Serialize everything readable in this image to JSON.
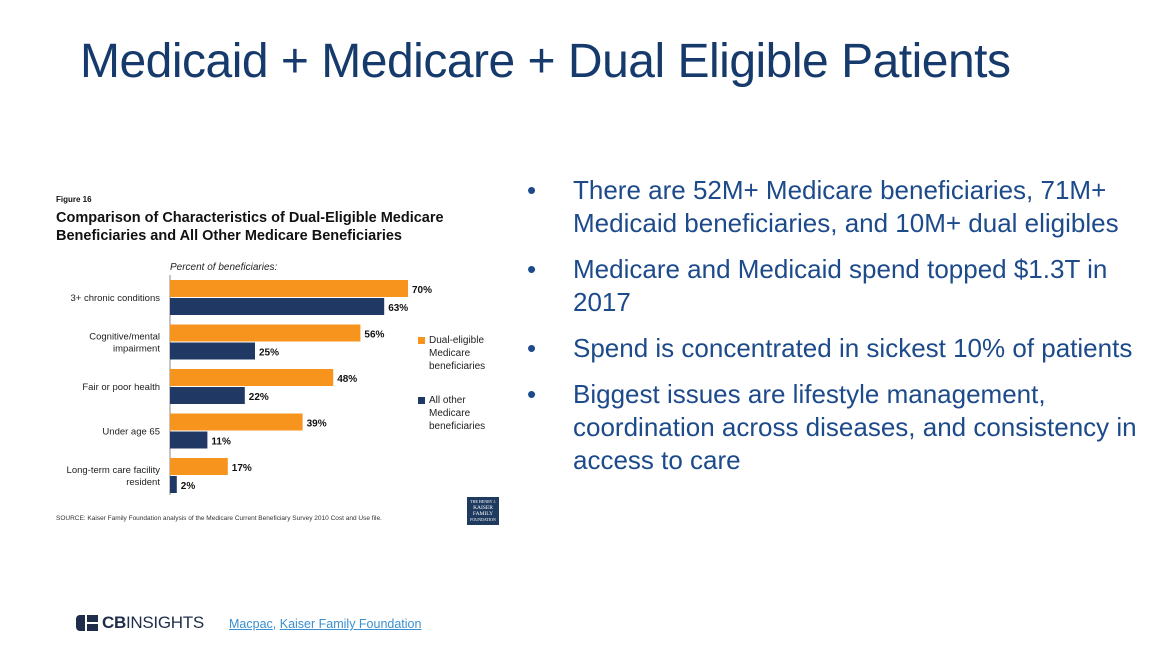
{
  "slide": {
    "title": "Medicaid + Medicare + Dual Eligible Patients",
    "bullets": [
      "There are 52M+ Medicare beneficiaries, 71M+ Medicaid beneficiaries, and 10M+ dual eligibles",
      "Medicare and Medicaid spend topped $1.3T in 2017",
      "Spend is concentrated in sickest 10% of patients",
      "Biggest issues are lifestyle management, coordination across diseases, and consistency in access to care"
    ],
    "bullet_symbol": "•"
  },
  "figure": {
    "label": "Figure 16",
    "title": "Comparison of Characteristics of Dual-Eligible Medicare Beneficiaries and All Other Medicare Beneficiaries",
    "source": "SOURCE: Kaiser Family Foundation analysis of the Medicare Current Beneficiary Survey 2010 Cost and Use file.",
    "logo_text": [
      "THE HENRY J.",
      "KAISER",
      "FAMILY",
      "FOUNDATION"
    ]
  },
  "chart_data": {
    "type": "bar",
    "orientation": "horizontal",
    "title": "Comparison of Characteristics of Dual-Eligible Medicare Beneficiaries and All Other Medicare Beneficiaries",
    "xlabel": "Percent of beneficiaries:",
    "ylabel": "",
    "xlim": [
      0,
      100
    ],
    "grid": false,
    "legend_position": "right",
    "categories": [
      [
        "3+ chronic conditions"
      ],
      [
        "Cognitive/mental",
        "impairment"
      ],
      [
        "Fair or poor health"
      ],
      [
        "Under age 65"
      ],
      [
        "Long-term care facility",
        "resident"
      ]
    ],
    "series": [
      {
        "name": "Dual-eligible Medicare beneficiaries",
        "legend_lines": [
          "Dual-eligible",
          "Medicare",
          "beneficiaries"
        ],
        "color": "#f7941d",
        "values": [
          70,
          56,
          48,
          39,
          17
        ]
      },
      {
        "name": "All other Medicare beneficiaries",
        "legend_lines": [
          "All other",
          "Medicare",
          "beneficiaries"
        ],
        "color": "#1f3864",
        "values": [
          63,
          25,
          22,
          11,
          2
        ]
      }
    ],
    "value_suffix": "%"
  },
  "footer": {
    "brand_bold": "CB",
    "brand_light": "INSIGHTS",
    "sources": [
      "Macpac",
      "Kaiser Family Foundation"
    ],
    "separator": ", "
  }
}
